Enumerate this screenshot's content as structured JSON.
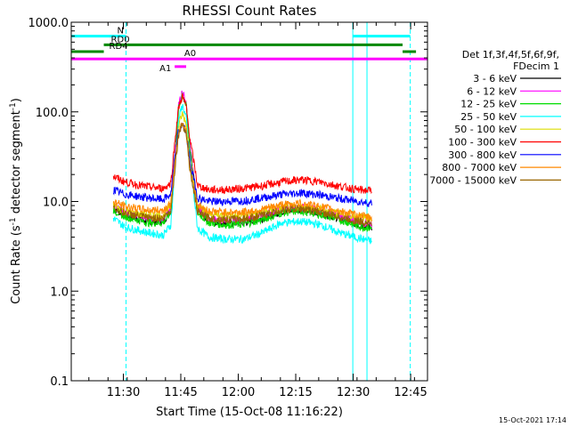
{
  "chart_data": {
    "type": "line",
    "title": "RHESSI Count Rates",
    "xlabel": "Start Time (15-Oct-08 11:16:22)",
    "ylabel_main": "Count Rate (s",
    "ylabel_sup": "-1",
    "ylabel_mid": " detector segment",
    "ylabel_sup2": "-1",
    "ylabel_end": ")",
    "x_unit": "minutes since 11:16:22",
    "xlim": [
      0,
      93
    ],
    "ylim": [
      0.1,
      1000
    ],
    "y_scale": "log",
    "x_ticks": [
      {
        "label": "11:30",
        "value": 13.6
      },
      {
        "label": "11:45",
        "value": 28.6
      },
      {
        "label": "12:00",
        "value": 43.6
      },
      {
        "label": "12:15",
        "value": 58.6
      },
      {
        "label": "12:30",
        "value": 73.6
      },
      {
        "label": "12:45",
        "value": 88.6
      }
    ],
    "y_ticks": [
      {
        "label": "0.1",
        "value": 0.1
      },
      {
        "label": "1.0",
        "value": 1.0
      },
      {
        "label": "10.0",
        "value": 10.0
      },
      {
        "label": "100.0",
        "value": 100.0
      },
      {
        "label": "1000.0",
        "value": 1000.0
      }
    ],
    "legend": {
      "placement": "right",
      "header_line1": "Det 1f,3f,4f,5f,6f,9f,",
      "header_line2": "FDecim 1"
    },
    "series": [
      {
        "name": "3 - 6 keV",
        "color": "#000000",
        "x": [
          11,
          14,
          20,
          24,
          26,
          27,
          28,
          29,
          30,
          31,
          33,
          36,
          40,
          45,
          50,
          55,
          60,
          65,
          70,
          75,
          78.5
        ],
        "y": [
          8.5,
          7.0,
          6.0,
          6.0,
          8.0,
          30,
          110,
          165,
          120,
          40,
          8.0,
          6.0,
          5.8,
          5.8,
          6.5,
          7.8,
          8.2,
          7.5,
          6.5,
          5.5,
          5.2
        ]
      },
      {
        "name": "6 - 12 keV",
        "color": "#ff00ff",
        "x": [
          11,
          14,
          20,
          24,
          26,
          27,
          28,
          29,
          30,
          31,
          33,
          36,
          40,
          45,
          50,
          55,
          60,
          65,
          70,
          75,
          78.5
        ],
        "y": [
          9.0,
          7.5,
          6.5,
          6.5,
          8.5,
          32,
          115,
          170,
          125,
          42,
          8.5,
          6.5,
          6.2,
          6.2,
          7.0,
          8.3,
          8.6,
          8.0,
          7.0,
          6.0,
          5.6
        ]
      },
      {
        "name": "12 - 25 keV",
        "color": "#00dd00",
        "x": [
          11,
          14,
          20,
          24,
          26,
          27,
          28,
          29,
          30,
          31,
          33,
          36,
          40,
          45,
          50,
          55,
          60,
          65,
          70,
          75,
          78.5
        ],
        "y": [
          8.0,
          6.8,
          5.8,
          5.8,
          7.5,
          28,
          105,
          160,
          115,
          38,
          7.5,
          5.8,
          5.5,
          5.6,
          6.3,
          7.5,
          7.8,
          7.2,
          6.3,
          5.3,
          5.0
        ]
      },
      {
        "name": "25 - 50 keV",
        "color": "#00ffff",
        "x": [
          11,
          14,
          20,
          24,
          26,
          27,
          28,
          29,
          30,
          31,
          33,
          36,
          40,
          45,
          50,
          55,
          60,
          65,
          70,
          75,
          78.5
        ],
        "y": [
          6.5,
          5.2,
          4.5,
          4.2,
          5.5,
          22,
          80,
          120,
          85,
          28,
          5.0,
          4.0,
          3.8,
          3.8,
          4.5,
          5.8,
          6.0,
          5.5,
          4.5,
          3.9,
          3.6
        ]
      },
      {
        "name": "50 - 100 keV",
        "color": "#dddd00",
        "x": [
          11,
          14,
          20,
          24,
          26,
          27,
          28,
          29,
          30,
          31,
          33,
          36,
          40,
          45,
          50,
          55,
          60,
          65,
          70,
          75,
          78.5
        ],
        "y": [
          9.0,
          7.8,
          7.0,
          7.0,
          9.0,
          25,
          70,
          95,
          75,
          30,
          9.0,
          7.2,
          7.0,
          7.0,
          7.6,
          8.5,
          8.8,
          8.2,
          7.4,
          6.8,
          6.5
        ]
      },
      {
        "name": "100 - 300 keV",
        "color": "#ff0000",
        "x": [
          11,
          14,
          20,
          24,
          26,
          27,
          28,
          29,
          30,
          31,
          33,
          36,
          40,
          45,
          50,
          55,
          60,
          65,
          70,
          75,
          78.5
        ],
        "y": [
          19.0,
          16.5,
          14.5,
          14.0,
          16.0,
          45,
          110,
          150,
          115,
          50,
          15.0,
          13.5,
          13.5,
          14.0,
          15.0,
          16.5,
          17.5,
          16.5,
          14.8,
          13.5,
          13.2
        ]
      },
      {
        "name": "300 - 800 keV",
        "color": "#0000ff",
        "x": [
          11,
          14,
          20,
          24,
          26,
          27,
          28,
          29,
          30,
          31,
          33,
          36,
          40,
          45,
          50,
          55,
          60,
          65,
          70,
          75,
          78.5
        ],
        "y": [
          13.5,
          12.0,
          11.0,
          10.5,
          12.0,
          30,
          62,
          72,
          60,
          28,
          11.0,
          10.0,
          10.0,
          10.2,
          11.0,
          12.0,
          12.5,
          11.8,
          10.8,
          10.0,
          9.5
        ]
      },
      {
        "name": "800 - 7000 keV",
        "color": "#ff8800",
        "x": [
          11,
          14,
          20,
          24,
          26,
          27,
          28,
          29,
          30,
          31,
          33,
          36,
          40,
          45,
          50,
          55,
          60,
          65,
          70,
          75,
          78.5
        ],
        "y": [
          10.0,
          8.8,
          8.0,
          8.0,
          9.5,
          25,
          58,
          78,
          60,
          24,
          9.0,
          7.8,
          7.6,
          7.6,
          8.2,
          9.2,
          9.5,
          8.8,
          7.8,
          7.0,
          6.6
        ]
      },
      {
        "name": "7000 - 15000 keV",
        "color": "#996600",
        "x": [
          11,
          14,
          20,
          24,
          26,
          27,
          28,
          29,
          30,
          31,
          33,
          36,
          40,
          45,
          50,
          55,
          60,
          65,
          70,
          75,
          78.5
        ],
        "y": [
          8.5,
          7.4,
          6.6,
          6.5,
          8.0,
          22,
          55,
          75,
          58,
          22,
          7.6,
          6.5,
          6.3,
          6.4,
          7.0,
          8.0,
          8.3,
          7.6,
          6.7,
          6.0,
          5.7
        ]
      }
    ],
    "flags": [
      {
        "label": "N",
        "color": "#00ffff",
        "segments": [
          [
            0,
            14.3
          ],
          [
            73.5,
            88.5
          ]
        ],
        "level": 700
      },
      {
        "label": "RD0",
        "color": "#008800",
        "segments": [
          [
            8.5,
            86.5
          ]
        ],
        "level": 560
      },
      {
        "label": "RD4",
        "color": "#008800",
        "segments": [
          [
            0,
            8.5
          ],
          [
            86.5,
            90
          ]
        ],
        "level": 470
      },
      {
        "label": "A0",
        "color": "#ff00ff",
        "segments": [
          [
            0,
            93
          ]
        ],
        "level": 390
      },
      {
        "label": "A1",
        "color": "#ff00ff",
        "segments": [
          [
            27.0,
            30.0
          ]
        ],
        "level": 320
      }
    ],
    "vertical_markers": [
      {
        "x": 0,
        "style": "solid",
        "color": "#00ffff"
      },
      {
        "x": 14.3,
        "style": "dashed",
        "color": "#00ffff"
      },
      {
        "x": 73.5,
        "style": "solid",
        "color": "#00ffff"
      },
      {
        "x": 77.2,
        "style": "solid",
        "color": "#00ffff"
      },
      {
        "x": 88.5,
        "style": "dashed",
        "color": "#00ffff"
      }
    ]
  },
  "footer": {
    "timestamp": "15-Oct-2021 17:14"
  }
}
